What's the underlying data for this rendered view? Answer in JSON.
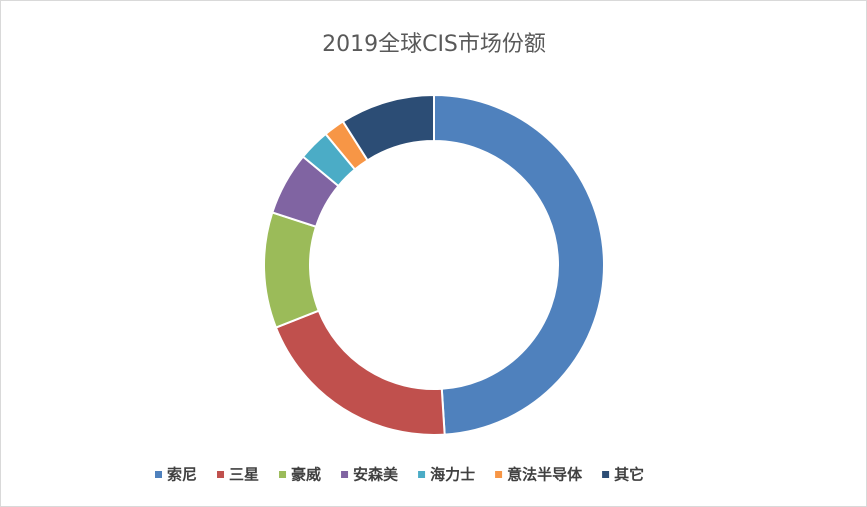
{
  "chart_data": {
    "type": "donut",
    "title": "2019全球CIS市场份额",
    "categories": [
      "索尼",
      "三星",
      "豪威",
      "安森美",
      "海力士",
      "意法半导体",
      "其它"
    ],
    "values": [
      49,
      20,
      11,
      6,
      3,
      2,
      9
    ],
    "colors": [
      "#4f81bd",
      "#c0504d",
      "#9bbb59",
      "#8064a2",
      "#4bacc6",
      "#f79646",
      "#2c4d75"
    ]
  }
}
